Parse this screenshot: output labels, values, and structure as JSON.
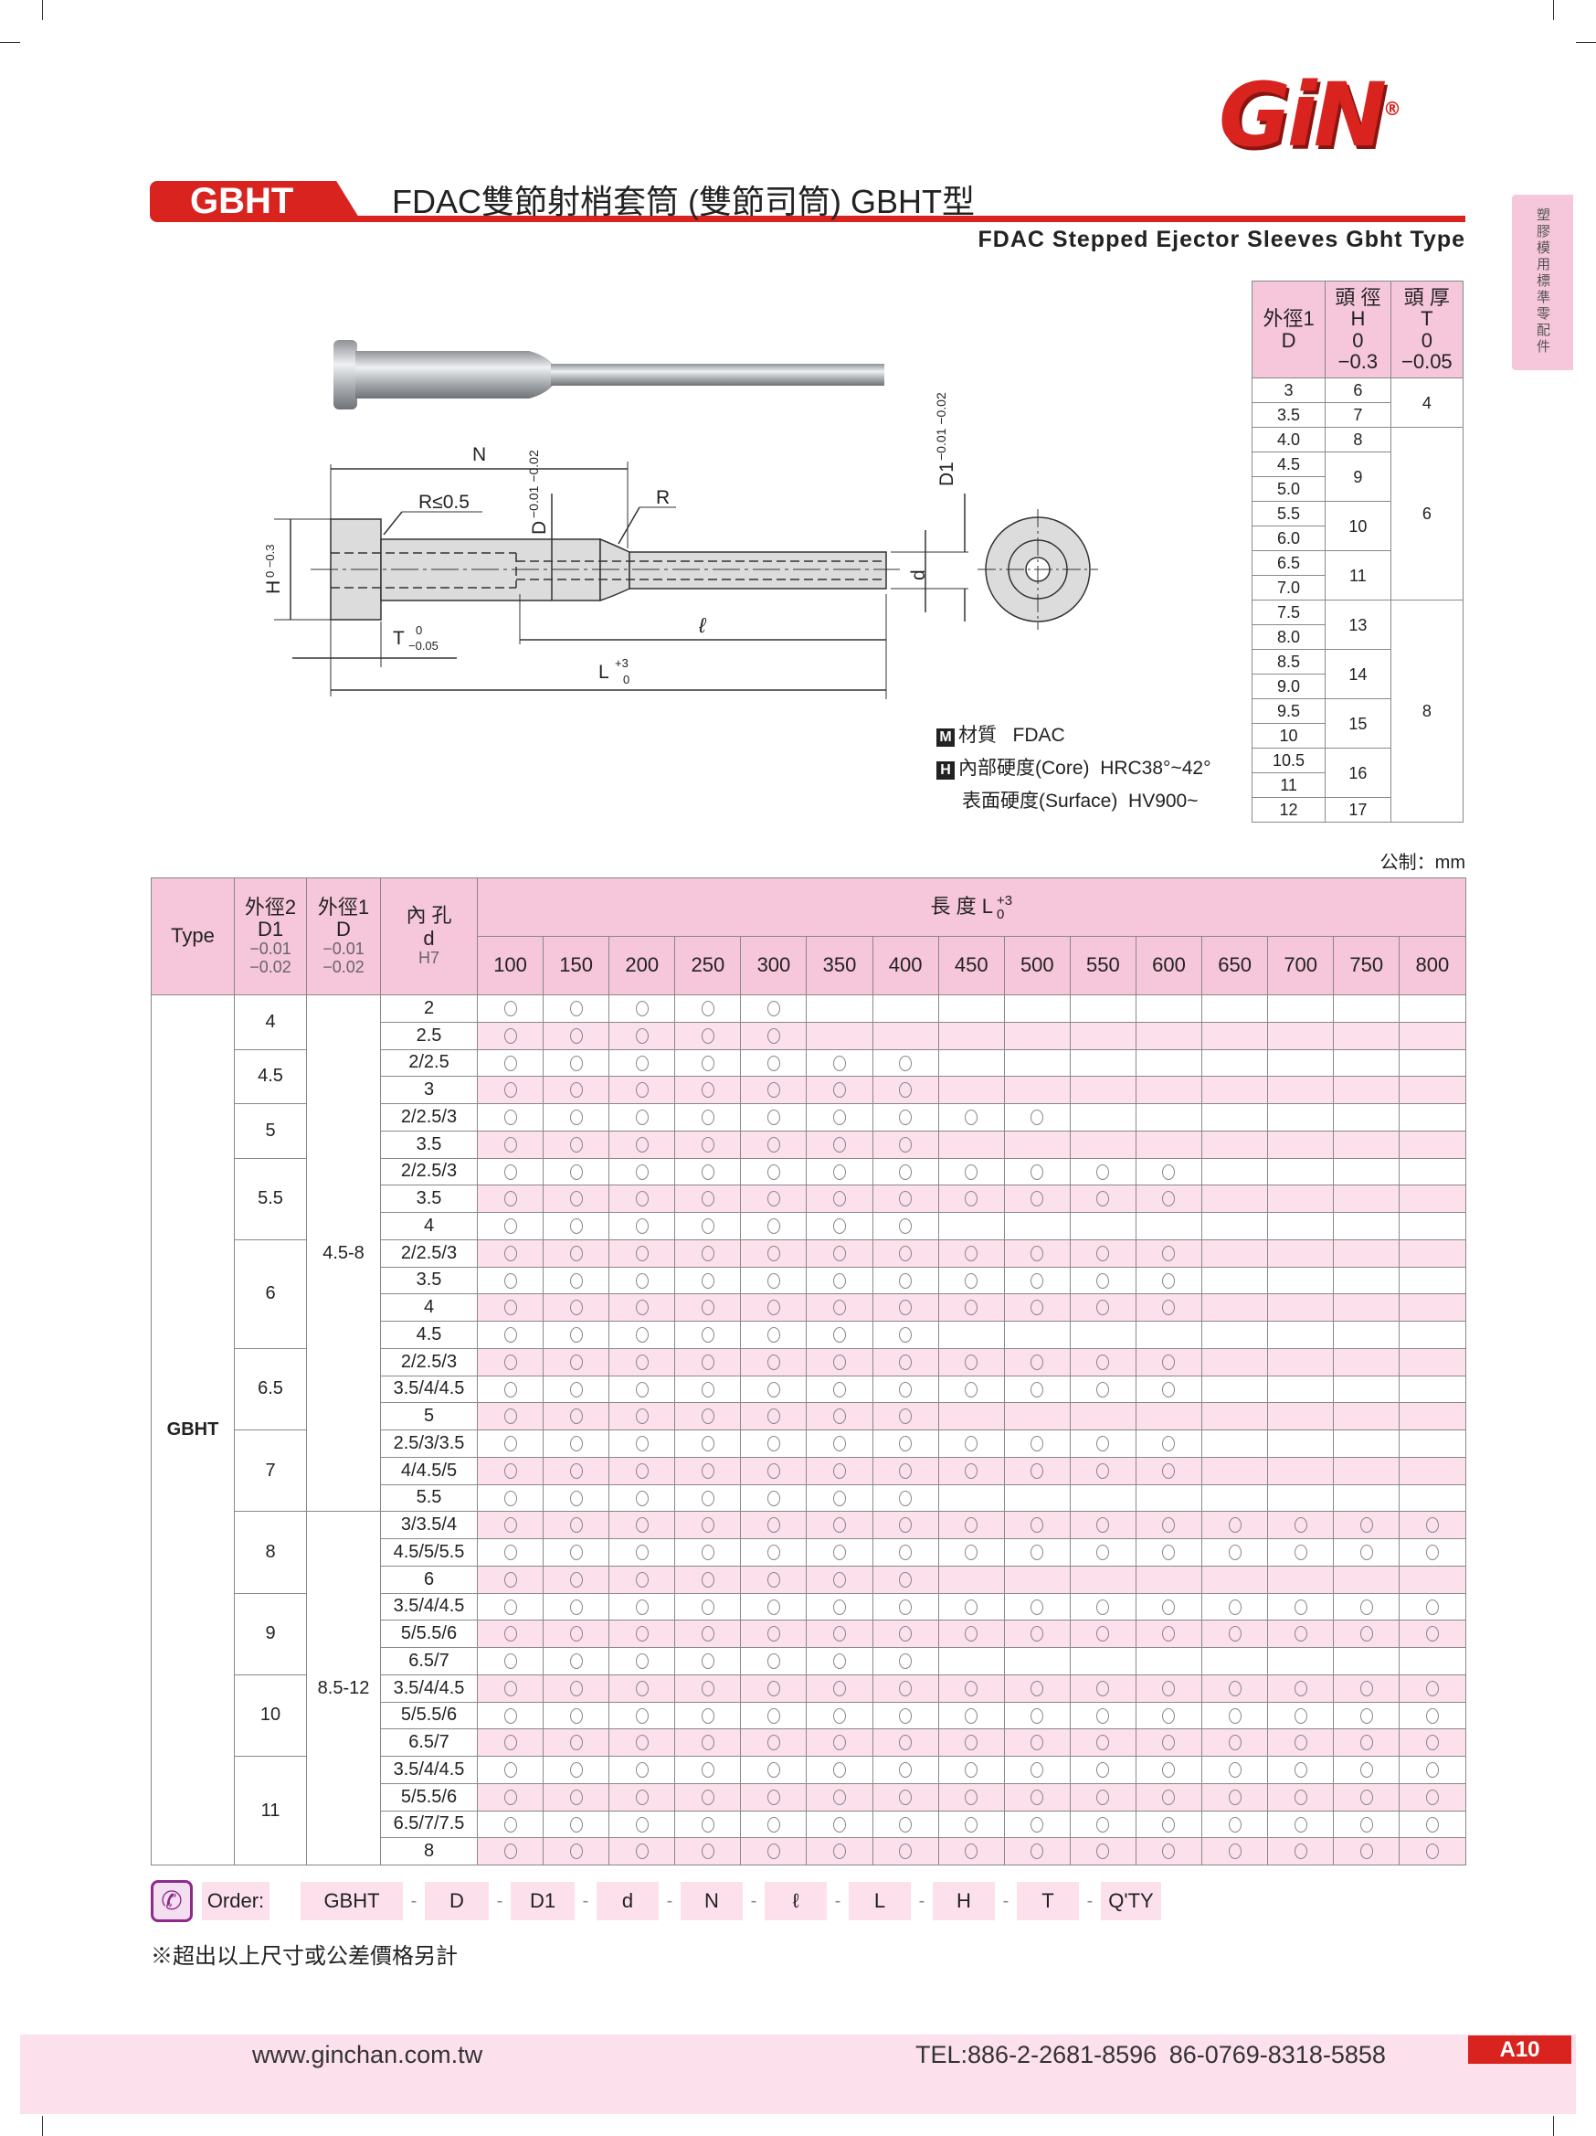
{
  "brand": {
    "logo_text": "GiN",
    "registered": "®",
    "accent": "#d8231f",
    "pink": "#f6c6da",
    "row_pink": "#fce0ec"
  },
  "header": {
    "tab": "GBHT",
    "title": "FDAC雙節射梢套筒 (雙節司筒) GBHT型",
    "subtitle": "FDAC  Stepped  Ejector  Sleeves Gbht Type",
    "side_tab": "塑膠模用標準零配件"
  },
  "drawing": {
    "N": "N",
    "R_small": "R≤0.5",
    "R": "R",
    "D": "D",
    "D_tol": "−0.01 −0.02",
    "D1": "D1",
    "D1_tol": "−0.01 −0.02",
    "d": "d",
    "H": "H",
    "H_tol": "0 −0.3",
    "T": "T",
    "T_tol_top": "0",
    "T_tol_bot": "−0.05",
    "ell": "ℓ",
    "L": "L",
    "L_tol_top": "+3",
    "L_tol_bot": "0"
  },
  "specs": {
    "material_badge": "M",
    "material_label": "材質",
    "material": "FDAC",
    "hardness_badge": "H",
    "core_label": "內部硬度(Core)",
    "core": "HRC38°~42°",
    "surface_label": "表面硬度(Surface)",
    "surface": "HV900~"
  },
  "size_table": {
    "headers": [
      {
        "l1": "外徑1",
        "l2": "D",
        "l3": "",
        "l4": ""
      },
      {
        "l1": "頭 徑",
        "l2": "H",
        "l3": "0",
        "l4": "−0.3"
      },
      {
        "l1": "頭 厚",
        "l2": "T",
        "l3": "0",
        "l4": "−0.05"
      }
    ],
    "D": [
      "3",
      "3.5",
      "4.0",
      "4.5",
      "5.0",
      "5.5",
      "6.0",
      "6.5",
      "7.0",
      "7.5",
      "8.0",
      "8.5",
      "9.0",
      "9.5",
      "10",
      "10.5",
      "11",
      "12"
    ],
    "H_groups": [
      {
        "v": "6",
        "n": 1
      },
      {
        "v": "7",
        "n": 1
      },
      {
        "v": "8",
        "n": 1
      },
      {
        "v": "9",
        "n": 2
      },
      {
        "v": "10",
        "n": 2
      },
      {
        "v": "11",
        "n": 2
      },
      {
        "v": "13",
        "n": 2
      },
      {
        "v": "14",
        "n": 2
      },
      {
        "v": "15",
        "n": 2
      },
      {
        "v": "16",
        "n": 2
      },
      {
        "v": "17",
        "n": 1
      }
    ],
    "T_groups": [
      {
        "v": "4",
        "n": 2
      },
      {
        "v": "6",
        "n": 7
      },
      {
        "v": "8",
        "n": 9
      }
    ]
  },
  "unit": "公制：mm",
  "main_table": {
    "headers": {
      "type": "Type",
      "d1": [
        "外徑2",
        "D1",
        "−0.01",
        "−0.02"
      ],
      "d": [
        "外徑1",
        "D",
        "−0.01",
        "−0.02"
      ],
      "hole": [
        "內 孔",
        "d",
        "H7"
      ],
      "length": "長 度 L",
      "length_tol_top": "+3",
      "length_tol_bot": "0"
    },
    "lengths": [
      "100",
      "150",
      "200",
      "250",
      "300",
      "350",
      "400",
      "450",
      "500",
      "550",
      "600",
      "650",
      "700",
      "750",
      "800"
    ],
    "type": "GBHT",
    "available_mark": "○",
    "D_groups": [
      {
        "v": "4.5-8",
        "rows": 19
      },
      {
        "v": "8.5-12",
        "rows": 13
      }
    ],
    "groups": [
      {
        "D1": "4",
        "rows": [
          {
            "d": "2",
            "max_L": 300
          },
          {
            "d": "2.5",
            "max_L": 300
          }
        ]
      },
      {
        "D1": "4.5",
        "rows": [
          {
            "d": "2/2.5",
            "max_L": 400
          },
          {
            "d": "3",
            "max_L": 400
          }
        ]
      },
      {
        "D1": "5",
        "rows": [
          {
            "d": "2/2.5/3",
            "max_L": 500
          },
          {
            "d": "3.5",
            "max_L": 400
          }
        ]
      },
      {
        "D1": "5.5",
        "rows": [
          {
            "d": "2/2.5/3",
            "max_L": 600
          },
          {
            "d": "3.5",
            "max_L": 600
          },
          {
            "d": "4",
            "max_L": 400
          }
        ]
      },
      {
        "D1": "6",
        "rows": [
          {
            "d": "2/2.5/3",
            "max_L": 600
          },
          {
            "d": "3.5",
            "max_L": 600
          },
          {
            "d": "4",
            "max_L": 600
          },
          {
            "d": "4.5",
            "max_L": 400
          }
        ]
      },
      {
        "D1": "6.5",
        "rows": [
          {
            "d": "2/2.5/3",
            "max_L": 600
          },
          {
            "d": "3.5/4/4.5",
            "max_L": 600
          },
          {
            "d": "5",
            "max_L": 400
          }
        ]
      },
      {
        "D1": "7",
        "rows": [
          {
            "d": "2.5/3/3.5",
            "max_L": 600
          },
          {
            "d": "4/4.5/5",
            "max_L": 600
          },
          {
            "d": "5.5",
            "max_L": 400
          }
        ]
      },
      {
        "D1": "8",
        "rows": [
          {
            "d": "3/3.5/4",
            "max_L": 800
          },
          {
            "d": "4.5/5/5.5",
            "max_L": 800
          },
          {
            "d": "6",
            "max_L": 400
          }
        ]
      },
      {
        "D1": "9",
        "rows": [
          {
            "d": "3.5/4/4.5",
            "max_L": 800
          },
          {
            "d": "5/5.5/6",
            "max_L": 800
          },
          {
            "d": "6.5/7",
            "max_L": 400
          }
        ]
      },
      {
        "D1": "10",
        "rows": [
          {
            "d": "3.5/4/4.5",
            "max_L": 800
          },
          {
            "d": "5/5.5/6",
            "max_L": 800
          },
          {
            "d": "6.5/7",
            "max_L": 800
          }
        ]
      },
      {
        "D1": "11",
        "rows": [
          {
            "d": "3.5/4/4.5",
            "max_L": 800
          },
          {
            "d": "5/5.5/6",
            "max_L": 800
          },
          {
            "d": "6.5/7/7.5",
            "max_L": 800
          },
          {
            "d": "8",
            "max_L": 800
          }
        ]
      }
    ]
  },
  "order": {
    "icon": "phone-icon",
    "label": "Order:",
    "fields": [
      "GBHT",
      "D",
      "D1",
      "d",
      "N",
      "ℓ",
      "L",
      "H",
      "T",
      "Q'TY"
    ],
    "separator": "-"
  },
  "note": "※超出以上尺寸或公差價格另計",
  "footer": {
    "website": "www.ginchan.com.tw",
    "tel": "TEL:886-2-2681-8596   86-0769-8318-5858",
    "page": "A10"
  }
}
